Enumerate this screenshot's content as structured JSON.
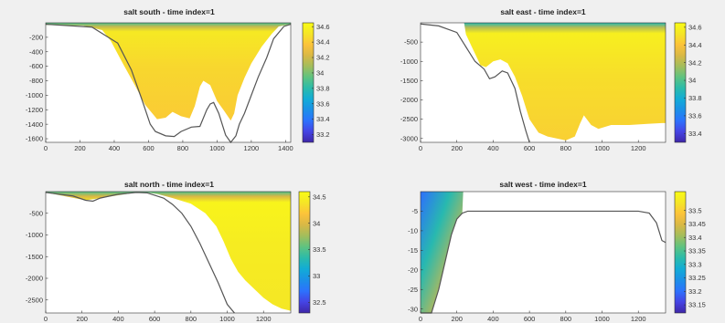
{
  "colormap": [
    "#3e26a8",
    "#4544e4",
    "#2c72fd",
    "#1b90e7",
    "#12acd6",
    "#2bbbaa",
    "#5fc380",
    "#a3bd5c",
    "#d9b845",
    "#fcc33a",
    "#f5e626",
    "#f9fb15"
  ],
  "chart_data": [
    {
      "type": "heatmap",
      "title": "salt south - time index=1",
      "xticks": [
        "0",
        "200",
        "400",
        "600",
        "800",
        "1000",
        "1200",
        "1400"
      ],
      "yticks": [
        "-200",
        "-400",
        "-600",
        "-800",
        "-1000",
        "-1200",
        "-1400",
        "-1600"
      ],
      "colorbar_ticks": [
        "34.6",
        "34.4",
        "34.2",
        "34",
        "33.8",
        "33.6",
        "33.4",
        "33.2"
      ],
      "xlim": [
        0,
        1430
      ],
      "ylim": [
        -1650,
        0
      ],
      "clim": [
        33.1,
        34.65
      ],
      "surface_value": 33.9,
      "interior_value": 34.45,
      "bottom": {
        "x": [
          0,
          270,
          420,
          500,
          560,
          610,
          640,
          700,
          750,
          790,
          850,
          900,
          940,
          960,
          980,
          1010,
          1050,
          1080,
          1110,
          1130,
          1160,
          1200,
          1240,
          1290,
          1330,
          1390,
          1430
        ],
        "y": [
          -20,
          -60,
          -280,
          -650,
          -1050,
          -1400,
          -1500,
          -1560,
          -1570,
          -1500,
          -1440,
          -1430,
          -1200,
          -1120,
          -1100,
          -1250,
          -1550,
          -1650,
          -1560,
          -1400,
          -1250,
          -1000,
          -750,
          -480,
          -220,
          -50,
          -20
        ]
      },
      "seafloor_fill": {
        "x": [
          0,
          220,
          330,
          380,
          450,
          520,
          580,
          650,
          700,
          740,
          790,
          840,
          870,
          900,
          920,
          960,
          1000,
          1040,
          1080,
          1100,
          1120,
          1160,
          1200,
          1260,
          1320,
          1360,
          1430
        ],
        "y": [
          -30,
          -40,
          -100,
          -250,
          -560,
          -860,
          -1130,
          -1330,
          -1310,
          -1230,
          -1290,
          -1320,
          -1150,
          -880,
          -800,
          -860,
          -1080,
          -1210,
          -1350,
          -1250,
          -1000,
          -760,
          -560,
          -330,
          -150,
          -50,
          -20
        ]
      }
    },
    {
      "type": "heatmap",
      "title": "salt east - time index=1",
      "xticks": [
        "0",
        "200",
        "400",
        "600",
        "800",
        "1000",
        "1200"
      ],
      "yticks": [
        "-500",
        "-1000",
        "-1500",
        "-2000",
        "-2500",
        "-3000"
      ],
      "colorbar_ticks": [
        "34.6",
        "34.4",
        "34.2",
        "34",
        "33.8",
        "33.6",
        "33.4"
      ],
      "xlim": [
        0,
        1350
      ],
      "ylim": [
        -3100,
        0
      ],
      "clim": [
        33.3,
        34.65
      ],
      "surface_value": 33.9,
      "interior_value": 34.5,
      "bottom": {
        "x": [
          0,
          100,
          200,
          260,
          300,
          350,
          380,
          410,
          450,
          480,
          520,
          550,
          580,
          600
        ],
        "y": [
          -30,
          -80,
          -250,
          -700,
          -1000,
          -1200,
          -1450,
          -1400,
          -1250,
          -1300,
          -1700,
          -2300,
          -2800,
          -3100
        ]
      },
      "shelf_edge_x": 240,
      "seafloor_fill": {
        "x": [
          240,
          250,
          300,
          330,
          360,
          400,
          440,
          480,
          520,
          560,
          600,
          650,
          700,
          750,
          800,
          850,
          880,
          900,
          940,
          980,
          1050,
          1150,
          1250,
          1330,
          1350
        ],
        "y": [
          0,
          -300,
          -800,
          -1100,
          -1150,
          -1000,
          -950,
          -1050,
          -1400,
          -1900,
          -2500,
          -2850,
          -2950,
          -3000,
          -3050,
          -2950,
          -2600,
          -2400,
          -2650,
          -2750,
          -2650,
          -2650,
          -2620,
          -2600,
          -2600
        ]
      }
    },
    {
      "type": "heatmap",
      "title": "salt north - time index=1",
      "xticks": [
        "0",
        "200",
        "400",
        "600",
        "800",
        "1000",
        "1200"
      ],
      "yticks": [
        "-500",
        "-1000",
        "-1500",
        "-2000",
        "-2500"
      ],
      "colorbar_ticks": [
        "34.5",
        "34",
        "33.5",
        "33",
        "32.5"
      ],
      "xlim": [
        0,
        1350
      ],
      "ylim": [
        -2800,
        0
      ],
      "clim": [
        32.3,
        34.6
      ],
      "surface_value": 33.5,
      "interior_value": 34.45,
      "bottom": {
        "x": [
          0,
          150,
          220,
          260,
          300,
          400,
          500,
          560,
          650,
          700,
          750,
          800,
          850,
          900,
          950,
          1000,
          1040
        ],
        "y": [
          -20,
          -100,
          -200,
          -220,
          -150,
          -60,
          -20,
          -30,
          -150,
          -300,
          -500,
          -800,
          -1200,
          -1650,
          -2100,
          -2600,
          -2800
        ]
      },
      "seafloor_fill": {
        "x": [
          0,
          220,
          300,
          500,
          560,
          620,
          700,
          800,
          880,
          940,
          980,
          1020,
          1060,
          1100,
          1150,
          1200,
          1250,
          1300,
          1350
        ],
        "y": [
          -20,
          -200,
          -150,
          -20,
          -20,
          -60,
          -150,
          -280,
          -500,
          -800,
          -1150,
          -1550,
          -1850,
          -2050,
          -2250,
          -2450,
          -2600,
          -2700,
          -2750
        ]
      }
    },
    {
      "type": "heatmap",
      "title": "salt west - time index=1",
      "xticks": [
        "0",
        "200",
        "400",
        "600",
        "800",
        "1000",
        "1200"
      ],
      "yticks": [
        "-5",
        "-10",
        "-15",
        "-20",
        "-25",
        "-30"
      ],
      "colorbar_ticks": [
        "33.5",
        "33.45",
        "33.4",
        "33.35",
        "33.3",
        "33.25",
        "33.2",
        "33.15"
      ],
      "xlim": [
        0,
        1350
      ],
      "ylim": [
        -31,
        0
      ],
      "clim": [
        33.12,
        33.57
      ],
      "surface_value": 33.2,
      "interior_value": 33.5,
      "gradient": "vertical",
      "bottom": {
        "x": [
          0,
          60,
          100,
          140,
          170,
          200,
          230,
          260,
          1200,
          1260,
          1300,
          1330,
          1350
        ],
        "y": [
          -31,
          -31,
          -25,
          -17,
          -11,
          -7,
          -5.5,
          -5,
          -5,
          -5.5,
          -8,
          -12.5,
          -13
        ]
      },
      "seafloor_fill": {
        "x": [
          0,
          60,
          100,
          140,
          170,
          200,
          230,
          235
        ],
        "y": [
          -31,
          -31,
          -25,
          -17,
          -11,
          -7,
          -5.5,
          0
        ]
      },
      "filled_x_max": 235
    }
  ]
}
